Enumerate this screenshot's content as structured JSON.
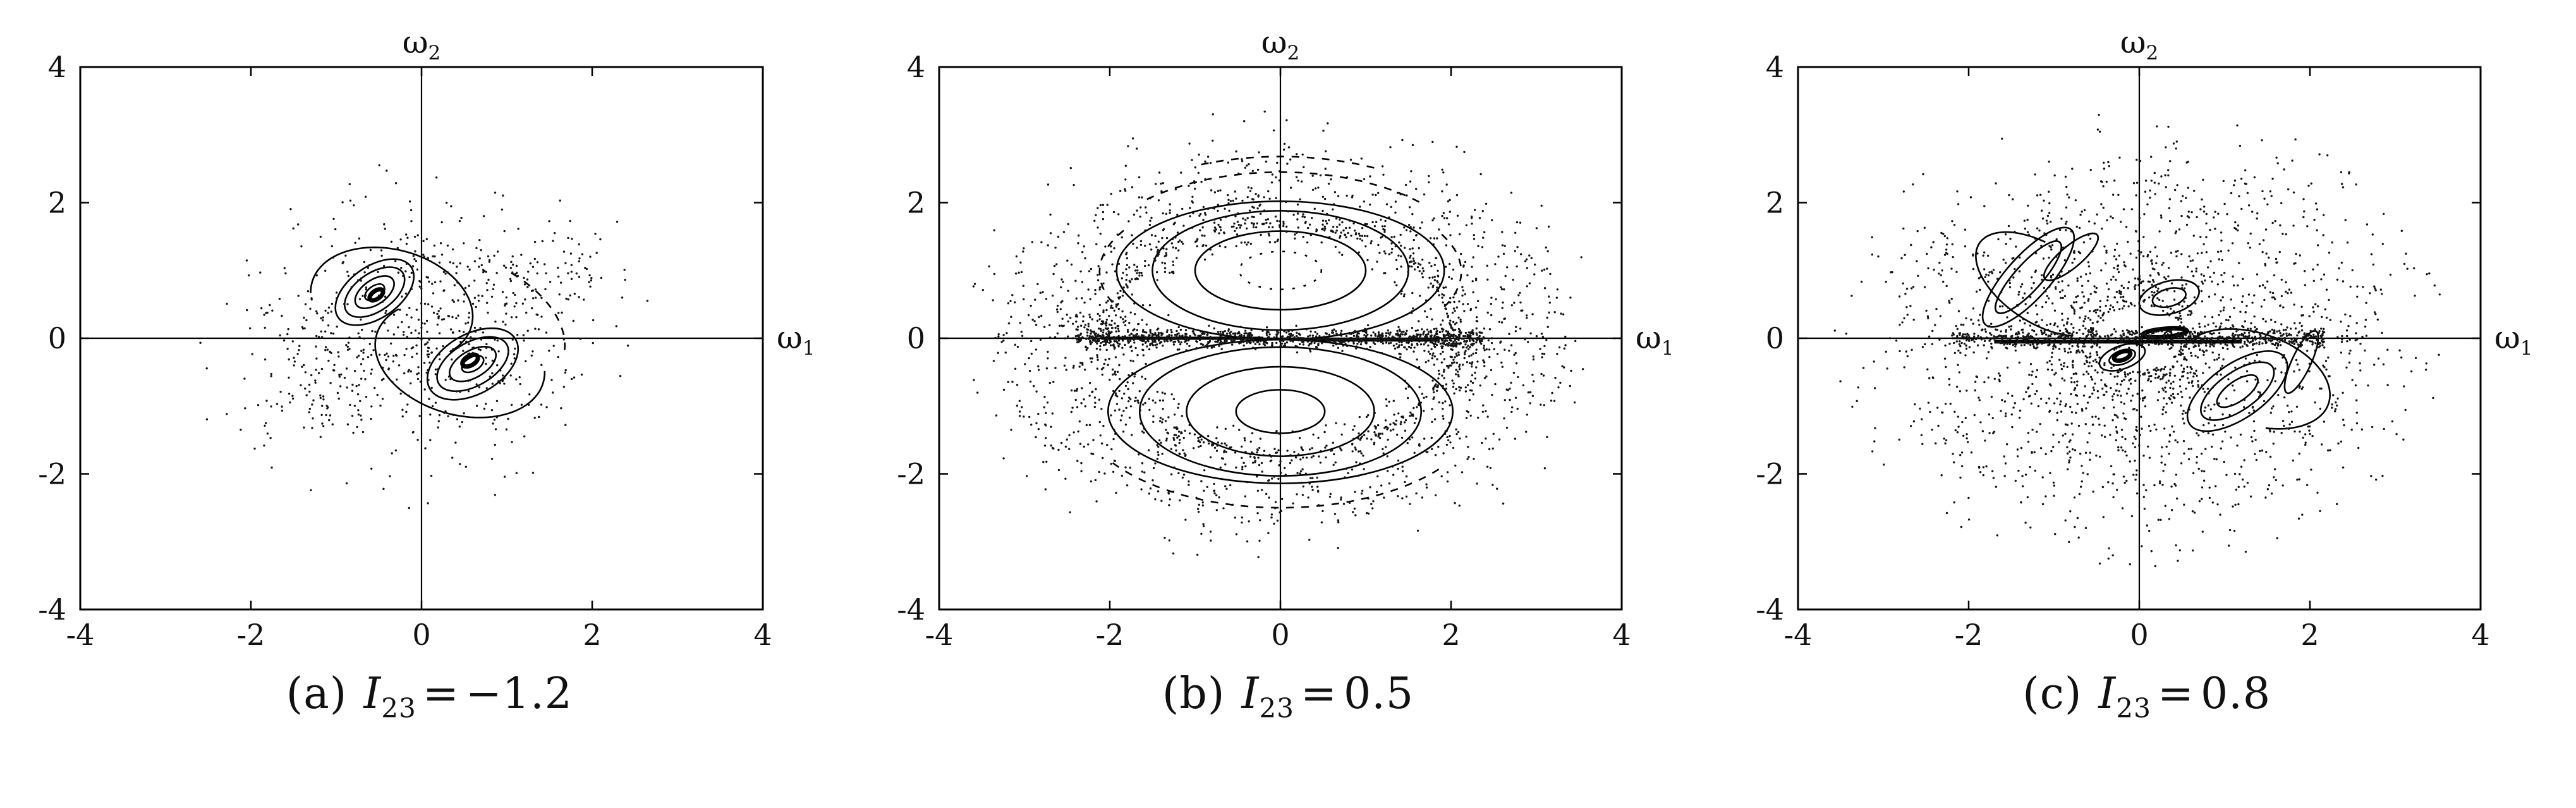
{
  "figure": {
    "description": "Three Poincare section phase portraits for different values of the inertia parameter I23, each plotted in the (omega1, omega2) plane with scattered chaotic points and nested regular island contours."
  },
  "chart_data": {
    "type": "scatter",
    "title": "",
    "x_range": [
      -4,
      4
    ],
    "y_range": [
      -4,
      4
    ],
    "ticks": [
      -4,
      -2,
      0,
      2,
      4
    ],
    "grid": false,
    "xlabel": {
      "base": "ω",
      "sub": "1"
    },
    "ylabel": {
      "base": "ω",
      "sub": "2"
    },
    "panels": [
      {
        "id": "a",
        "caption": {
          "label": "(a)",
          "var": "I",
          "sub": "23",
          "rel": "=",
          "val": "−1.2"
        },
        "caption_text": "(a) I23 = −1.2",
        "islands": [
          {
            "cx": -0.55,
            "cy": 0.68,
            "rot": -35,
            "rings": [
              [
                0.13,
                0.09
              ],
              [
                0.26,
                0.18
              ],
              [
                0.4,
                0.28
              ],
              [
                0.52,
                0.38
              ]
            ]
          },
          {
            "cx": 0.6,
            "cy": -0.38,
            "rot": -30,
            "rings": [
              [
                0.14,
                0.1
              ],
              [
                0.3,
                0.2
              ],
              [
                0.46,
                0.32
              ],
              [
                0.58,
                0.44
              ]
            ]
          }
        ],
        "arcs": [
          {
            "cx": -0.35,
            "cy": 0.5,
            "rx": 1.0,
            "ry": 0.78,
            "rot": -30,
            "a0": -20,
            "a1": 205
          },
          {
            "cx": 0.45,
            "cy": -0.3,
            "rx": 1.05,
            "ry": 0.8,
            "rot": -30,
            "a0": 160,
            "a1": 385
          },
          {
            "cx": 0.2,
            "cy": 0.2,
            "rx": 1.55,
            "ry": 1.1,
            "rot": -25,
            "a0": 15,
            "a1": 75,
            "dash": true
          }
        ],
        "blobs": [
          {
            "cx": -0.53,
            "cy": 0.64,
            "rx": 0.09,
            "ry": 0.06,
            "rot": -35
          },
          {
            "cx": 0.57,
            "cy": -0.33,
            "rx": 0.1,
            "ry": 0.07,
            "rot": -30
          }
        ],
        "lines": [],
        "scatter": [
          {
            "type": "gauss",
            "n": 430,
            "cx": 0.05,
            "cy": 0.1,
            "sx": 0.8,
            "sy": 0.7
          },
          {
            "type": "annulus",
            "n": 240,
            "rmin": 1.1,
            "rmax": 2.6,
            "pow": 1.8
          },
          {
            "type": "gauss",
            "n": 55,
            "cx": 1.5,
            "cy": 1.1,
            "sx": 0.45,
            "sy": 0.3
          },
          {
            "type": "gauss",
            "n": 45,
            "cx": -1.4,
            "cy": -0.9,
            "sx": 0.45,
            "sy": 0.3
          }
        ]
      },
      {
        "id": "b",
        "caption": {
          "label": "(b)",
          "var": "I",
          "sub": "23",
          "rel": "=",
          "val": "0.5"
        },
        "caption_text": "(b) I23 = 0.5",
        "islands": [
          {
            "cx": 0,
            "cy": 1.0,
            "rot": 0,
            "rings": [
              [
                0.48,
                0.28,
                "dash"
              ],
              [
                1.0,
                0.58
              ],
              [
                1.5,
                0.88
              ],
              [
                1.92,
                1.02
              ]
            ]
          },
          {
            "cx": 0,
            "cy": -1.08,
            "rot": 0,
            "rings": [
              [
                0.52,
                0.32
              ],
              [
                1.1,
                0.66
              ],
              [
                1.65,
                0.95
              ],
              [
                2.02,
                1.06
              ]
            ]
          }
        ],
        "arcs": [
          {
            "cx": 0,
            "cy": 0.95,
            "rx": 2.3,
            "ry": 1.5,
            "rot": 0,
            "a0": 45,
            "a1": 135,
            "dash": true
          },
          {
            "cx": 0,
            "cy": 0.9,
            "rx": 2.6,
            "ry": 1.78,
            "rot": 0,
            "a0": 65,
            "a1": 115,
            "dash": true
          },
          {
            "cx": 0,
            "cy": 0.98,
            "rx": 2.12,
            "ry": 1.22,
            "rot": 0,
            "a0": 150,
            "a1": 205,
            "dash": true
          },
          {
            "cx": 0,
            "cy": 0.98,
            "rx": 2.12,
            "ry": 1.22,
            "rot": 0,
            "a0": -25,
            "a1": 30,
            "dash": true
          },
          {
            "cx": 0,
            "cy": -0.95,
            "rx": 2.4,
            "ry": 1.55,
            "rot": 0,
            "a0": 215,
            "a1": 325,
            "dash": true
          }
        ],
        "blobs": [],
        "lines": [
          {
            "x0": -2.1,
            "x1": -0.2,
            "y": 0.0,
            "w": 5
          },
          {
            "x0": 0.3,
            "x1": 1.85,
            "y": -0.03,
            "w": 4
          }
        ],
        "scatter": [
          {
            "type": "band",
            "n": 950,
            "x0": -2.4,
            "x1": 2.4,
            "ys": 0.07
          },
          {
            "type": "annulus",
            "n": 1500,
            "rmin": 2.0,
            "rmax": 3.4,
            "pow": 1.5,
            "sy": 0.82
          },
          {
            "type": "annulus",
            "n": 320,
            "rmin": 1.6,
            "rmax": 2.1,
            "pow": 1.0,
            "sy": 0.85
          },
          {
            "type": "gauss",
            "n": 90,
            "cx": -2.0,
            "cy": 0.1,
            "sx": 0.3,
            "sy": 0.15
          },
          {
            "type": "gauss",
            "n": 90,
            "cx": 2.0,
            "cy": -0.1,
            "sx": 0.3,
            "sy": 0.15
          },
          {
            "type": "annulus",
            "n": 130,
            "rmin": 3.0,
            "rmax": 3.8,
            "pow": 1.0,
            "sy": 0.9
          }
        ]
      },
      {
        "id": "c",
        "caption": {
          "label": "(c)",
          "var": "I",
          "sub": "23",
          "rel": "=",
          "val": "0.8"
        },
        "caption_text": "(c) I23 = 0.8",
        "islands": [
          {
            "cx": -1.3,
            "cy": 0.9,
            "rot": -48,
            "rings": [
              [
                0.55,
                0.2
              ],
              [
                0.75,
                0.32
              ]
            ]
          },
          {
            "cx": -0.8,
            "cy": 1.2,
            "rot": -40,
            "rings": [
              [
                0.4,
                0.16
              ]
            ]
          },
          {
            "cx": 0.35,
            "cy": 0.6,
            "rot": -15,
            "rings": [
              [
                0.2,
                0.13
              ],
              [
                0.36,
                0.24
              ]
            ]
          },
          {
            "cx": -0.2,
            "cy": -0.28,
            "rot": -20,
            "rings": [
              [
                0.16,
                0.1
              ],
              [
                0.28,
                0.17
              ]
            ]
          },
          {
            "cx": 1.15,
            "cy": -0.78,
            "rot": -35,
            "rings": [
              [
                0.28,
                0.15
              ],
              [
                0.5,
                0.28
              ],
              [
                0.68,
                0.4
              ]
            ]
          },
          {
            "cx": 1.9,
            "cy": -0.35,
            "rot": -65,
            "rings": [
              [
                0.4,
                0.14
              ]
            ]
          }
        ],
        "arcs": [
          {
            "cx": 1.35,
            "cy": -0.6,
            "rx": 0.95,
            "ry": 0.65,
            "rot": -30,
            "a0": -60,
            "a1": 170
          },
          {
            "cx": -1.15,
            "cy": 0.8,
            "rx": 0.95,
            "ry": 0.52,
            "rot": -45,
            "a0": 115,
            "a1": 330
          }
        ],
        "blobs": [
          {
            "cx": -0.2,
            "cy": -0.26,
            "rx": 0.1,
            "ry": 0.06,
            "rot": -20
          },
          {
            "cx": 0.3,
            "cy": 0.08,
            "rx": 0.26,
            "ry": 0.06,
            "rot": -5
          }
        ],
        "lines": [
          {
            "x0": -1.7,
            "x1": 1.2,
            "y": -0.05,
            "w": 6
          },
          {
            "x0": -2.2,
            "x1": -1.7,
            "y": 0.0,
            "w": 3
          }
        ],
        "scatter": [
          {
            "type": "band",
            "n": 720,
            "x0": -2.2,
            "x1": 2.2,
            "ys": 0.07
          },
          {
            "type": "annulus",
            "n": 1800,
            "rmin": 0.5,
            "rmax": 2.9,
            "pow": 1.2,
            "sy": 0.95
          },
          {
            "type": "annulus",
            "n": 160,
            "rmin": 2.9,
            "rmax": 3.6,
            "pow": 1.0,
            "sy": 0.95
          }
        ]
      }
    ]
  }
}
